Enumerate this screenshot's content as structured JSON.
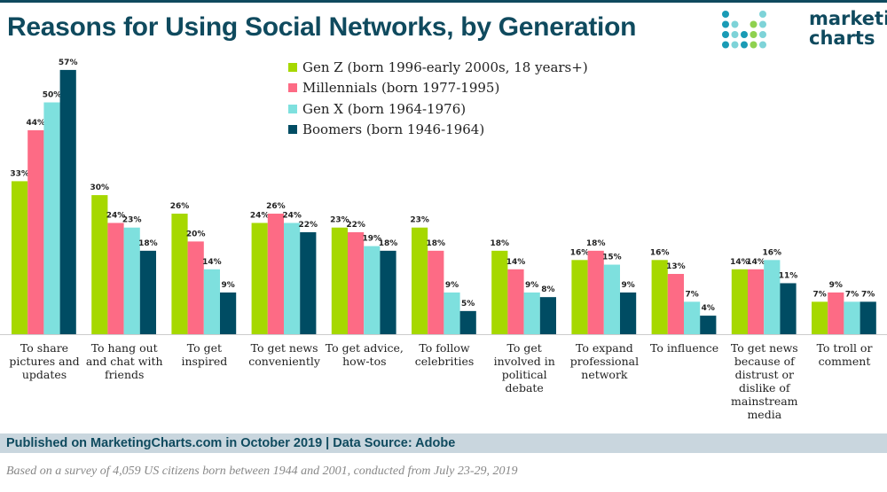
{
  "title": "Reasons for Using Social Networks, by Generation",
  "logo": {
    "line1": "marketing",
    "line2": "charts"
  },
  "colors": {
    "gen_z": "#a6d800",
    "millennials": "#fd6b85",
    "gen_x": "#7ee0de",
    "boomers": "#004c63",
    "brand": "#0f4a5e"
  },
  "chart_data": {
    "type": "bar",
    "title": "Reasons for Using Social Networks, by Generation",
    "categories": [
      "To share pictures and updates",
      "To hang out and chat with friends",
      "To get inspired",
      "To get news conveniently",
      "To get advice, how-tos",
      "To follow celebrities",
      "To get involved in political debate",
      "To expand professional network",
      "To influence",
      "To get news because of distrust or dislike of mainstream media",
      "To troll or comment"
    ],
    "series": [
      {
        "name": "Gen Z (born 1996-early 2000s, 18 years+)",
        "values": [
          33,
          30,
          26,
          24,
          23,
          23,
          18,
          16,
          16,
          14,
          7
        ]
      },
      {
        "name": "Millennials (born 1977-1995)",
        "values": [
          44,
          24,
          20,
          26,
          22,
          18,
          14,
          18,
          13,
          14,
          9
        ]
      },
      {
        "name": "Gen X (born 1964-1976)",
        "values": [
          50,
          23,
          14,
          24,
          19,
          9,
          9,
          15,
          7,
          16,
          7
        ]
      },
      {
        "name": "Boomers (born 1946-1964)",
        "values": [
          57,
          18,
          9,
          22,
          18,
          5,
          8,
          9,
          4,
          11,
          7
        ]
      }
    ],
    "value_suffix": "%",
    "ylim": [
      0,
      57
    ],
    "grid": false,
    "legend_placement": "top-center"
  },
  "footer": {
    "published": "Published on MarketingCharts.com in October 2019 | Data Source: Adobe",
    "note": "Based on a survey of 4,059 US citizens born between 1944 and 2001, conducted from July 23-29, 2019"
  }
}
